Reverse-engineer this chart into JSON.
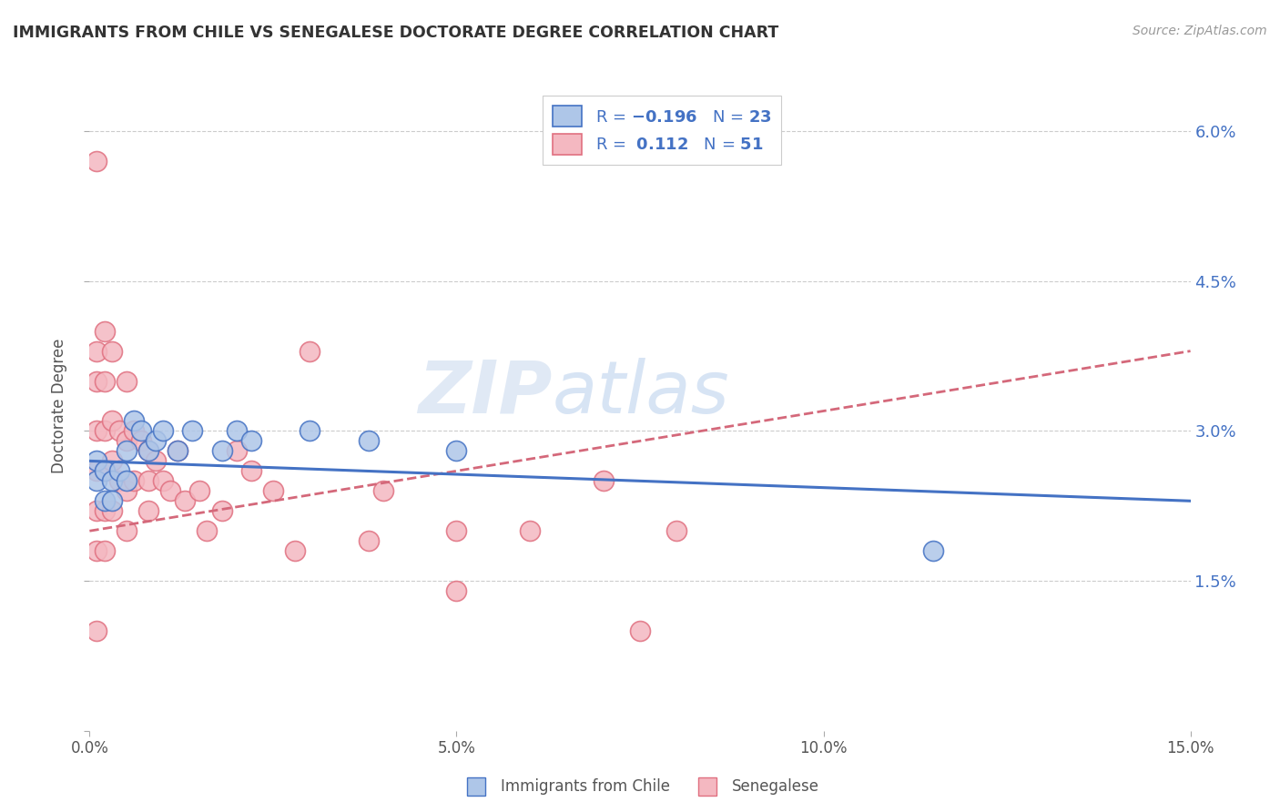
{
  "title": "IMMIGRANTS FROM CHILE VS SENEGALESE DOCTORATE DEGREE CORRELATION CHART",
  "source": "Source: ZipAtlas.com",
  "ylabel": "Doctorate Degree",
  "xlim": [
    0.0,
    0.15
  ],
  "ylim": [
    0.0,
    0.065
  ],
  "ytick_vals": [
    0.0,
    0.015,
    0.03,
    0.045,
    0.06
  ],
  "ytick_labels_right": [
    "",
    "1.5%",
    "3.0%",
    "4.5%",
    "6.0%"
  ],
  "xticks": [
    0.0,
    0.05,
    0.1,
    0.15
  ],
  "xtick_labels": [
    "0.0%",
    "5.0%",
    "10.0%",
    "15.0%"
  ],
  "legend_n_chile": "23",
  "legend_r_senegal": "0.112",
  "legend_n_senegal": "51",
  "chile_fill": "#aec6e8",
  "senegal_fill": "#f4b8c1",
  "chile_edge": "#4472c4",
  "senegal_edge": "#e07080",
  "chile_line_color": "#4472c4",
  "senegal_line_color": "#d4687a",
  "watermark": "ZIPatlas",
  "background_color": "#ffffff",
  "grid_color": "#cccccc",
  "chile_x": [
    0.001,
    0.001,
    0.002,
    0.002,
    0.003,
    0.003,
    0.004,
    0.005,
    0.005,
    0.006,
    0.007,
    0.008,
    0.009,
    0.01,
    0.012,
    0.014,
    0.018,
    0.02,
    0.022,
    0.03,
    0.038,
    0.05,
    0.115
  ],
  "chile_y": [
    0.027,
    0.025,
    0.026,
    0.023,
    0.025,
    0.023,
    0.026,
    0.028,
    0.025,
    0.031,
    0.03,
    0.028,
    0.029,
    0.03,
    0.028,
    0.03,
    0.028,
    0.03,
    0.029,
    0.03,
    0.029,
    0.028,
    0.018
  ],
  "senegal_x": [
    0.001,
    0.001,
    0.001,
    0.001,
    0.001,
    0.001,
    0.001,
    0.001,
    0.002,
    0.002,
    0.002,
    0.002,
    0.002,
    0.002,
    0.003,
    0.003,
    0.003,
    0.003,
    0.004,
    0.004,
    0.005,
    0.005,
    0.005,
    0.005,
    0.006,
    0.006,
    0.007,
    0.008,
    0.008,
    0.008,
    0.009,
    0.01,
    0.011,
    0.012,
    0.013,
    0.015,
    0.016,
    0.018,
    0.02,
    0.022,
    0.025,
    0.028,
    0.03,
    0.038,
    0.04,
    0.05,
    0.05,
    0.06,
    0.07,
    0.075,
    0.08
  ],
  "senegal_y": [
    0.057,
    0.038,
    0.035,
    0.03,
    0.026,
    0.022,
    0.018,
    0.01,
    0.04,
    0.035,
    0.03,
    0.026,
    0.022,
    0.018,
    0.038,
    0.031,
    0.027,
    0.022,
    0.03,
    0.025,
    0.035,
    0.029,
    0.024,
    0.02,
    0.03,
    0.025,
    0.029,
    0.028,
    0.025,
    0.022,
    0.027,
    0.025,
    0.024,
    0.028,
    0.023,
    0.024,
    0.02,
    0.022,
    0.028,
    0.026,
    0.024,
    0.018,
    0.038,
    0.019,
    0.024,
    0.02,
    0.014,
    0.02,
    0.025,
    0.01,
    0.02
  ]
}
